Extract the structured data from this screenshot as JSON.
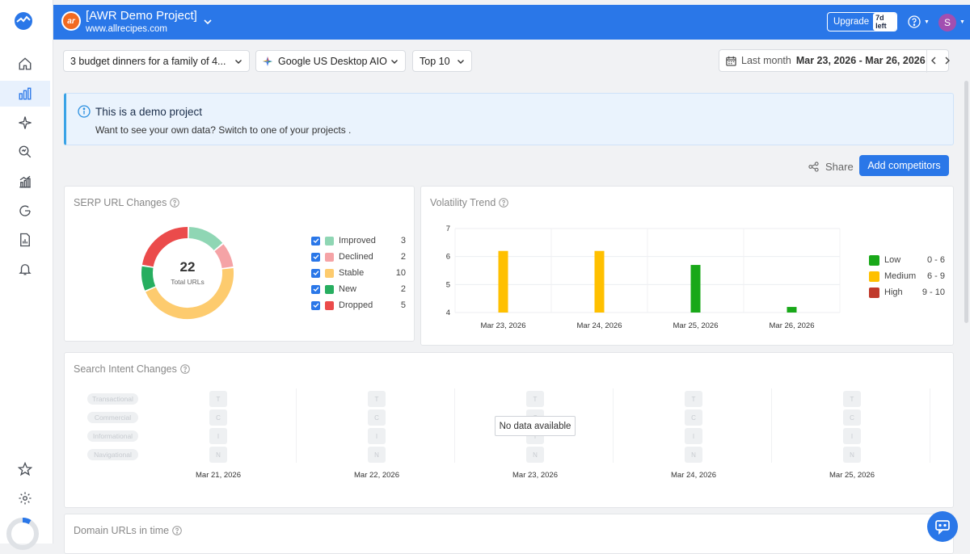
{
  "header": {
    "project_logo_text": "ar",
    "project_name": "[AWR Demo Project]",
    "project_url": "www.allrecipes.com",
    "upgrade_label": "Upgrade",
    "upgrade_badge": "7d left",
    "avatar_initial": "S"
  },
  "filters": {
    "keyword": "3 budget dinners for a family of 4...",
    "search_engine": "Google US Desktop AIO",
    "top": "Top 10",
    "date_preset": "Last month",
    "date_range": "Mar 23, 2026 - Mar 26, 2026"
  },
  "notice": {
    "title": "This is a demo project",
    "text": "Want to see your own data? Switch to one of your projects ."
  },
  "actions": {
    "share_label": "Share",
    "add_competitors_label": "Add competitors"
  },
  "serp_changes": {
    "title": "SERP URL Changes",
    "total": "22",
    "total_label": "Total URLs"
  },
  "volatility": {
    "title": "Volatility Trend"
  },
  "intent": {
    "title": "Search Intent Changes",
    "rows": [
      "Transactional",
      "Commercial",
      "Informational",
      "Navigational"
    ],
    "letters": [
      "T",
      "C",
      "I",
      "N"
    ],
    "dates": [
      "Mar 21, 2026",
      "Mar 22, 2026",
      "Mar 23, 2026",
      "Mar 24, 2026",
      "Mar 25, 2026"
    ],
    "no_data": "No data available"
  },
  "domain_urls": {
    "title": "Domain URLs in time"
  },
  "colors": {
    "brand_blue": "#2a77e8",
    "improved": "#8fd6b4",
    "declined": "#f5a3a6",
    "stable": "#fdcb6e",
    "new": "#27ae60",
    "dropped": "#eb4b4b",
    "low": "#19a819",
    "medium": "#ffc000",
    "high": "#c0392b"
  },
  "chart_data": [
    {
      "type": "pie",
      "title": "SERP URL Changes",
      "categories": [
        "Improved",
        "Declined",
        "Stable",
        "New",
        "Dropped"
      ],
      "values": [
        3,
        2,
        10,
        2,
        5
      ],
      "colors": [
        "#8fd6b4",
        "#f5a3a6",
        "#fdcb6e",
        "#27ae60",
        "#eb4b4b"
      ],
      "total": 22
    },
    {
      "type": "bar",
      "title": "Volatility Trend",
      "categories": [
        "Mar 23, 2026",
        "Mar 24, 2026",
        "Mar 25, 2026",
        "Mar 26, 2026"
      ],
      "values": [
        6.2,
        6.2,
        5.7,
        4.2
      ],
      "bar_colors": [
        "#ffc000",
        "#ffc000",
        "#19a819",
        "#19a819"
      ],
      "ylim": [
        4,
        7
      ],
      "yticks": [
        "7",
        "6",
        "5",
        "4"
      ],
      "legend": [
        {
          "name": "Low",
          "range": "0 - 6",
          "color": "#19a819"
        },
        {
          "name": "Medium",
          "range": "6 - 9",
          "color": "#ffc000"
        },
        {
          "name": "High",
          "range": "9 - 10",
          "color": "#c0392b"
        }
      ],
      "legend_position": "right"
    }
  ]
}
